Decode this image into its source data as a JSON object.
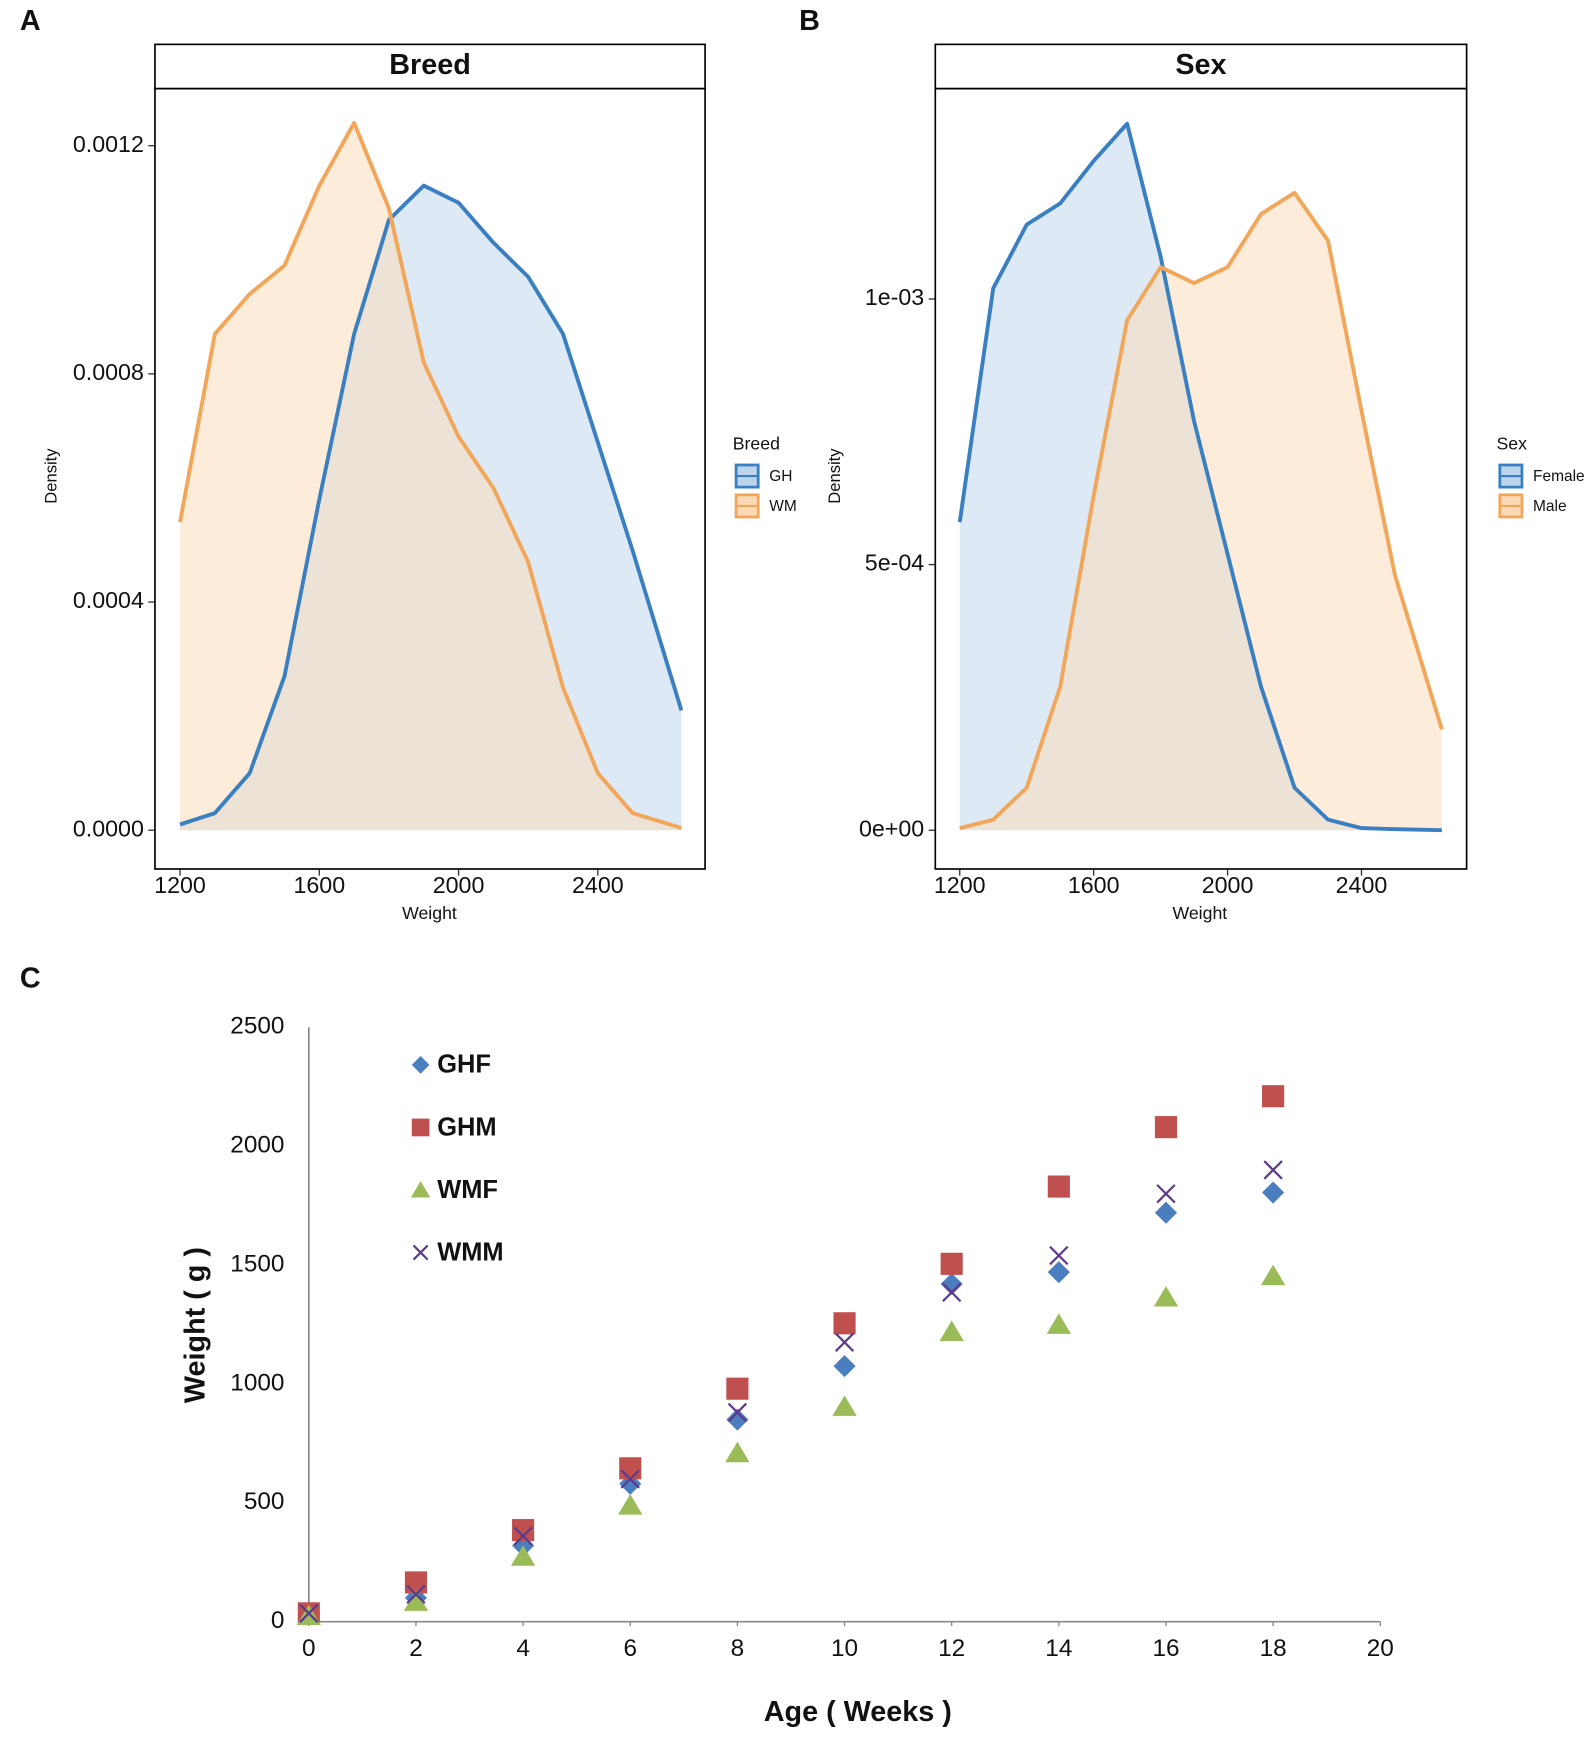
{
  "chart_data": [
    {
      "type": "density",
      "panel_label": "A",
      "title": "Breed",
      "x_label": "Weight",
      "y_label": "Density",
      "legend_title": "Breed",
      "x": [
        1200,
        1300,
        1400,
        1500,
        1600,
        1700,
        1800,
        1900,
        2000,
        2100,
        2200,
        2300,
        2400,
        2500,
        2640
      ],
      "series": [
        {
          "name": "GH",
          "color": "#3a7fc1",
          "fill": "#bcd5ec",
          "values": [
            1e-05,
            3e-05,
            0.0001,
            0.00027,
            0.00058,
            0.00087,
            0.00107,
            0.00113,
            0.0011,
            0.00103,
            0.00097,
            0.00087,
            0.00068,
            0.00049,
            0.00021
          ]
        },
        {
          "name": "WM",
          "color": "#f2a65a",
          "fill": "#fbd9b6",
          "values": [
            0.00054,
            0.00087,
            0.00094,
            0.00099,
            0.00113,
            0.00124,
            0.00109,
            0.00082,
            0.00069,
            0.0006,
            0.00047,
            0.00025,
            0.0001,
            3e-05,
            4e-06
          ]
        }
      ],
      "xlim": [
        1128,
        2708
      ],
      "xticks": [
        1200,
        1600,
        2000,
        2400
      ],
      "ylim": [
        -6.8e-05,
        0.0013
      ],
      "yticks": [
        {
          "value": 0,
          "label": "0.0000"
        },
        0.0004,
        0.0008,
        0.0012
      ]
    },
    {
      "type": "density",
      "panel_label": "B",
      "title": "Sex",
      "x_label": "Weight",
      "y_label": "Density",
      "legend_title": "Sex",
      "x": [
        1200,
        1300,
        1400,
        1500,
        1600,
        1700,
        1800,
        1900,
        2000,
        2100,
        2200,
        2300,
        2400,
        2500,
        2640
      ],
      "series": [
        {
          "name": "Female",
          "color": "#3a7fc1",
          "fill": "#bcd5ec",
          "values": [
            0.00058,
            0.00102,
            0.00114,
            0.00118,
            0.00126,
            0.00133,
            0.00108,
            0.00077,
            0.00052,
            0.00027,
            8e-05,
            2e-05,
            4e-06,
            2e-06,
            0
          ]
        },
        {
          "name": "Male",
          "color": "#f2a65a",
          "fill": "#fbd9b6",
          "values": [
            4e-06,
            2e-05,
            8e-05,
            0.00027,
            0.00063,
            0.00096,
            0.00106,
            0.00103,
            0.00106,
            0.00116,
            0.0012,
            0.00111,
            0.00079,
            0.00048,
            0.00019
          ]
        }
      ],
      "xlim": [
        1127,
        2714
      ],
      "xticks": [
        1200,
        1600,
        2000,
        2400
      ],
      "ylim": [
        -7.3e-05,
        0.001396
      ],
      "yticks": [
        {
          "value": 0,
          "label": "0e+00"
        },
        {
          "value": 0.0005,
          "label": "5e-04"
        },
        {
          "value": 0.001,
          "label": "1e-03"
        }
      ]
    },
    {
      "type": "scatter",
      "panel_label": "C",
      "x_label": "Age ( Weeks )",
      "y_label": "Weight ( g )",
      "x": [
        0,
        2,
        4,
        6,
        8,
        10,
        12,
        14,
        16,
        18
      ],
      "series": [
        {
          "name": "GHF",
          "color": "#4a7ebf",
          "marker": "diamond",
          "values": [
            30,
            100,
            320,
            580,
            850,
            1075,
            1420,
            1470,
            1720,
            1805
          ]
        },
        {
          "name": "GHM",
          "color": "#c0504d",
          "marker": "square",
          "values": [
            35,
            165,
            385,
            645,
            980,
            1255,
            1505,
            1830,
            2080,
            2210
          ]
        },
        {
          "name": "WMF",
          "color": "#9bbb59",
          "marker": "triangle",
          "values": [
            25,
            85,
            275,
            490,
            710,
            905,
            1220,
            1250,
            1365,
            1455
          ]
        },
        {
          "name": "WMM",
          "color": "#5a3a8a",
          "marker": "x",
          "values": [
            35,
            115,
            360,
            600,
            880,
            1175,
            1385,
            1540,
            1800,
            1900
          ]
        }
      ],
      "xlim": [
        0,
        20
      ],
      "xticks": [
        0,
        2,
        4,
        6,
        8,
        10,
        12,
        14,
        16,
        18,
        20
      ],
      "ylim": [
        0,
        2500
      ],
      "yticks": [
        0,
        500,
        1000,
        1500,
        2000,
        2500
      ]
    }
  ]
}
